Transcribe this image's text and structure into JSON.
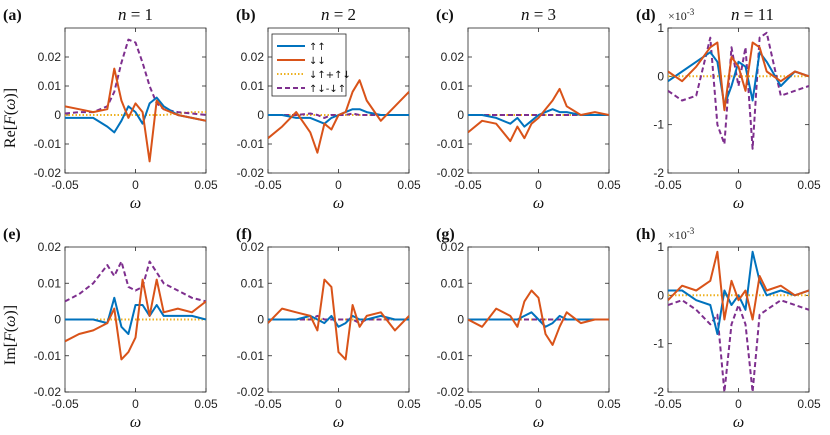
{
  "colors": {
    "up_up": "#0072BD",
    "down_down": "#D95319",
    "sym": "#EDB120",
    "antisym": "#7E2F8E",
    "axis": "#262626"
  },
  "row_labels": {
    "re_prefix": "Re[",
    "im_prefix": "Im[",
    "f_symbol": "F",
    "omega_symbol": "ω",
    "suffix": ")]",
    "open_paren": "("
  },
  "legend": {
    "entries": [
      {
        "key": "up_up",
        "label": "↑↑"
      },
      {
        "key": "down_down",
        "label": "↓↓"
      },
      {
        "key": "sym",
        "label": "↓↑+↑↓"
      },
      {
        "key": "antisym",
        "label": "↑↓-↓↑"
      }
    ]
  },
  "chart_data": [
    {
      "panel": "(a)",
      "title_var": "n",
      "title_eq": " = 1",
      "row": "Re",
      "type": "line",
      "xlabel": "ω",
      "xlim": [
        -0.05,
        0.05
      ],
      "ylim": [
        -0.02,
        0.03
      ],
      "xticks": [
        "-0.05",
        "0",
        "0.05"
      ],
      "yticks": [
        "-0.02",
        "-0.01",
        "0",
        "0.01",
        "0.02"
      ],
      "ytick_values": [
        -0.02,
        -0.01,
        0,
        0.01,
        0.02
      ],
      "exponent": "",
      "x": [
        -0.05,
        -0.04,
        -0.03,
        -0.02,
        -0.015,
        -0.01,
        -0.005,
        0,
        0.005,
        0.01,
        0.015,
        0.02,
        0.03,
        0.04,
        0.05
      ],
      "series": [
        {
          "name": "↑↑",
          "key": "up_up",
          "values": [
            -0.001,
            -0.001,
            -0.001,
            -0.004,
            -0.006,
            -0.002,
            0.003,
            0.001,
            -0.003,
            0.004,
            0.006,
            0.003,
            0,
            -0.001,
            -0.002
          ]
        },
        {
          "name": "↓↓",
          "key": "down_down",
          "values": [
            0.003,
            0.002,
            0.001,
            0.002,
            0.016,
            0.005,
            -0.001,
            0.004,
            0.001,
            -0.016,
            0.005,
            0.002,
            0,
            -0.001,
            -0.002
          ]
        },
        {
          "name": "↓↑+↑↓",
          "key": "sym",
          "values": [
            0,
            0,
            0,
            0,
            0,
            0,
            0,
            0,
            0,
            0,
            0,
            0,
            0.0005,
            0.001,
            0.001
          ]
        },
        {
          "name": "↑↓-↓↑",
          "key": "antisym",
          "values": [
            0.0005,
            0.001,
            0.001,
            0.003,
            0.008,
            0.018,
            0.026,
            0.025,
            0.018,
            0.01,
            0.004,
            0.002,
            0.001,
            0.0005,
            0
          ]
        }
      ]
    },
    {
      "panel": "(b)",
      "title_var": "n",
      "title_eq": " = 2",
      "row": "Re",
      "type": "line",
      "xlabel": "ω",
      "xlim": [
        -0.05,
        0.05
      ],
      "ylim": [
        -0.02,
        0.03
      ],
      "xticks": [
        "-0.05",
        "0",
        "0.05"
      ],
      "yticks": [
        "-0.02",
        "-0.01",
        "0",
        "0.01",
        "0.02"
      ],
      "ytick_values": [
        -0.02,
        -0.01,
        0,
        0.01,
        0.02
      ],
      "exponent": "",
      "x": [
        -0.05,
        -0.04,
        -0.03,
        -0.02,
        -0.015,
        -0.01,
        -0.005,
        0,
        0.005,
        0.01,
        0.015,
        0.02,
        0.03,
        0.04,
        0.05
      ],
      "series": [
        {
          "name": "↑↑",
          "key": "up_up",
          "values": [
            0,
            0,
            -0.001,
            -0.001,
            -0.002,
            -0.003,
            -0.001,
            0,
            0.001,
            0.002,
            0.002,
            0.001,
            0,
            0,
            0
          ]
        },
        {
          "name": "↓↓",
          "key": "down_down",
          "values": [
            -0.008,
            -0.004,
            0.001,
            -0.006,
            -0.013,
            -0.003,
            -0.005,
            0,
            0.001,
            0.008,
            0.012,
            0.005,
            -0.002,
            0.003,
            0.008
          ]
        },
        {
          "name": "↓↑+↑↓",
          "key": "sym",
          "values": [
            0,
            0,
            0,
            0,
            0,
            0,
            0,
            0,
            0,
            0,
            0,
            0,
            0,
            0,
            0
          ]
        },
        {
          "name": "↑↓-↓↑",
          "key": "antisym",
          "values": [
            0,
            0,
            0,
            0.0005,
            0,
            -0.001,
            0,
            0,
            0,
            0.0005,
            0,
            0,
            0,
            0,
            0
          ]
        }
      ]
    },
    {
      "panel": "(c)",
      "title_var": "n",
      "title_eq": " = 3",
      "row": "Re",
      "type": "line",
      "xlabel": "ω",
      "xlim": [
        -0.05,
        0.05
      ],
      "ylim": [
        -0.02,
        0.03
      ],
      "xticks": [
        "-0.05",
        "0",
        "0.05"
      ],
      "yticks": [
        "-0.02",
        "-0.01",
        "0",
        "0.01",
        "0.02"
      ],
      "ytick_values": [
        -0.02,
        -0.01,
        0,
        0.01,
        0.02
      ],
      "exponent": "",
      "x": [
        -0.05,
        -0.04,
        -0.03,
        -0.02,
        -0.015,
        -0.01,
        -0.005,
        0,
        0.005,
        0.01,
        0.015,
        0.02,
        0.03,
        0.04,
        0.05
      ],
      "series": [
        {
          "name": "↑↑",
          "key": "up_up",
          "values": [
            0,
            0,
            -0.001,
            -0.003,
            -0.001,
            -0.004,
            -0.002,
            0,
            0.001,
            0.002,
            0.001,
            0.001,
            0,
            0,
            0
          ]
        },
        {
          "name": "↓↓",
          "key": "down_down",
          "values": [
            -0.006,
            -0.002,
            -0.003,
            -0.009,
            -0.004,
            -0.008,
            -0.003,
            -0.001,
            0.002,
            0.005,
            0.009,
            0.003,
            0,
            0.001,
            0
          ]
        },
        {
          "name": "↓↑+↑↓",
          "key": "sym",
          "values": [
            0,
            0,
            0,
            0,
            0,
            0,
            0,
            0,
            0,
            0,
            0,
            0,
            0,
            0,
            0
          ]
        },
        {
          "name": "↑↓-↓↑",
          "key": "antisym",
          "values": [
            0,
            0,
            0,
            0,
            0,
            0,
            0,
            0,
            0,
            0,
            0,
            0,
            0,
            0,
            0
          ]
        }
      ]
    },
    {
      "panel": "(d)",
      "title_var": "n",
      "title_eq": " = 11",
      "row": "Re",
      "type": "line",
      "xlabel": "ω",
      "xlim": [
        -0.05,
        0.05
      ],
      "ylim": [
        -2,
        1
      ],
      "xticks": [
        "-0.05",
        "0",
        "0.05"
      ],
      "yticks": [
        "-2",
        "-1",
        "0",
        "1"
      ],
      "ytick_values": [
        -2,
        -1,
        0,
        1
      ],
      "exponent": "×10-3",
      "x": [
        -0.05,
        -0.04,
        -0.03,
        -0.02,
        -0.015,
        -0.01,
        -0.005,
        0,
        0.005,
        0.01,
        0.015,
        0.02,
        0.03,
        0.04,
        0.05
      ],
      "series": [
        {
          "name": "↑↑",
          "key": "up_up",
          "values": [
            -0.1,
            0.1,
            0.3,
            0.5,
            0.3,
            -0.6,
            -0.2,
            0.3,
            0.2,
            -0.5,
            0.5,
            0.3,
            -0.2,
            0.1,
            0
          ]
        },
        {
          "name": "↓↓",
          "key": "down_down",
          "values": [
            0.1,
            -0.1,
            0.2,
            0.6,
            0.7,
            -0.7,
            0.4,
            0.2,
            -0.3,
            0.7,
            0.6,
            0.1,
            -0.1,
            0.1,
            0
          ]
        },
        {
          "name": "↓↑+↑↓",
          "key": "sym",
          "values": [
            0,
            0,
            0,
            0,
            0,
            0,
            0,
            0,
            0,
            0,
            0,
            0,
            0,
            0,
            0
          ]
        },
        {
          "name": "↑↓-↓↑",
          "key": "antisym",
          "values": [
            -0.3,
            -0.5,
            -0.4,
            0.8,
            -1.0,
            -1.4,
            0.6,
            -0.2,
            0.6,
            -1.5,
            0.8,
            0.9,
            -0.4,
            -0.3,
            -0.2
          ]
        }
      ]
    },
    {
      "panel": "(e)",
      "title_var": "",
      "title_eq": "",
      "row": "Im",
      "type": "line",
      "xlabel": "ω",
      "xlim": [
        -0.05,
        0.05
      ],
      "ylim": [
        -0.02,
        0.02
      ],
      "xticks": [
        "-0.05",
        "0",
        "0.05"
      ],
      "yticks": [
        "-0.02",
        "-0.01",
        "0",
        "0.01",
        "0.02"
      ],
      "ytick_values": [
        -0.02,
        -0.01,
        0,
        0.01,
        0.02
      ],
      "exponent": "",
      "x": [
        -0.05,
        -0.04,
        -0.03,
        -0.02,
        -0.015,
        -0.01,
        -0.005,
        0,
        0.005,
        0.01,
        0.015,
        0.02,
        0.03,
        0.04,
        0.05
      ],
      "series": [
        {
          "name": "↑↑",
          "key": "up_up",
          "values": [
            0,
            0,
            0,
            -0.001,
            0.006,
            -0.002,
            -0.004,
            0.004,
            0.004,
            0.001,
            0.004,
            0.001,
            0.001,
            0.001,
            0
          ]
        },
        {
          "name": "↓↓",
          "key": "down_down",
          "values": [
            -0.006,
            -0.004,
            -0.003,
            -0.001,
            0.003,
            -0.011,
            -0.009,
            -0.005,
            0.011,
            0.001,
            0.011,
            0.002,
            0.003,
            0.002,
            0.005
          ]
        },
        {
          "name": "↓↑+↑↓",
          "key": "sym",
          "values": [
            0,
            0,
            0,
            0,
            0,
            0,
            0,
            0,
            0,
            0,
            0,
            0,
            0,
            0,
            0
          ]
        },
        {
          "name": "↑↓-↓↑",
          "key": "antisym",
          "values": [
            0.005,
            0.007,
            0.01,
            0.015,
            0.012,
            0.016,
            0.009,
            0.008,
            0.009,
            0.016,
            0.013,
            0.01,
            0.008,
            0.006,
            0.005
          ]
        }
      ]
    },
    {
      "panel": "(f)",
      "title_var": "",
      "title_eq": "",
      "row": "Im",
      "type": "line",
      "xlabel": "ω",
      "xlim": [
        -0.05,
        0.05
      ],
      "ylim": [
        -0.02,
        0.02
      ],
      "xticks": [
        "-0.05",
        "0",
        "0.05"
      ],
      "yticks": [
        "-0.02",
        "-0.01",
        "0",
        "0.01",
        "0.02"
      ],
      "ytick_values": [
        -0.02,
        -0.01,
        0,
        0.01,
        0.02
      ],
      "exponent": "",
      "x": [
        -0.05,
        -0.04,
        -0.03,
        -0.02,
        -0.015,
        -0.01,
        -0.005,
        0,
        0.005,
        0.01,
        0.015,
        0.02,
        0.03,
        0.04,
        0.05
      ],
      "series": [
        {
          "name": "↑↑",
          "key": "up_up",
          "values": [
            0,
            0,
            0,
            0.001,
            0,
            -0.001,
            0.001,
            -0.002,
            -0.001,
            0.001,
            0,
            0,
            0.001,
            0,
            0
          ]
        },
        {
          "name": "↓↓",
          "key": "down_down",
          "values": [
            -0.001,
            0.003,
            0.002,
            0.001,
            -0.003,
            0.011,
            0.009,
            -0.009,
            -0.011,
            0.004,
            -0.002,
            0.001,
            0.002,
            -0.003,
            0.001
          ]
        },
        {
          "name": "↓↑+↑↓",
          "key": "sym",
          "values": [
            0,
            0,
            0,
            0,
            0,
            0,
            0,
            0,
            0,
            0,
            0,
            0,
            0,
            0,
            0
          ]
        },
        {
          "name": "↑↓-↓↑",
          "key": "antisym",
          "values": [
            0,
            0,
            0,
            0,
            0.001,
            0,
            0,
            0,
            0,
            0,
            -0.001,
            0,
            0,
            0,
            0
          ]
        }
      ]
    },
    {
      "panel": "(g)",
      "title_var": "",
      "title_eq": "",
      "row": "Im",
      "type": "line",
      "xlabel": "ω",
      "xlim": [
        -0.05,
        0.05
      ],
      "ylim": [
        -0.02,
        0.02
      ],
      "xticks": [
        "-0.05",
        "0",
        "0.05"
      ],
      "yticks": [
        "-0.02",
        "-0.01",
        "0",
        "0.01",
        "0.02"
      ],
      "ytick_values": [
        -0.02,
        -0.01,
        0,
        0.01,
        0.02
      ],
      "exponent": "",
      "x": [
        -0.05,
        -0.04,
        -0.03,
        -0.02,
        -0.015,
        -0.01,
        -0.005,
        0,
        0.005,
        0.01,
        0.015,
        0.02,
        0.03,
        0.04,
        0.05
      ],
      "series": [
        {
          "name": "↑↑",
          "key": "up_up",
          "values": [
            0,
            0,
            0,
            0,
            0,
            0.001,
            0.002,
            0,
            -0.002,
            -0.001,
            0.001,
            0,
            0,
            0,
            0
          ]
        },
        {
          "name": "↓↓",
          "key": "down_down",
          "values": [
            0,
            -0.002,
            0.003,
            0.001,
            -0.002,
            0.005,
            0.008,
            0.006,
            -0.004,
            -0.007,
            -0.002,
            0.002,
            -0.001,
            0,
            0
          ]
        },
        {
          "name": "↓↑+↑↓",
          "key": "sym",
          "values": [
            0,
            0,
            0,
            0,
            0,
            0,
            0,
            0,
            0,
            0,
            0,
            0,
            0,
            0,
            0
          ]
        },
        {
          "name": "↑↓-↓↑",
          "key": "antisym",
          "values": [
            0,
            0,
            0,
            0,
            0,
            0,
            0,
            0,
            0,
            0,
            0,
            0,
            0,
            0,
            0
          ]
        }
      ]
    },
    {
      "panel": "(h)",
      "title_var": "",
      "title_eq": "",
      "row": "Im",
      "type": "line",
      "xlabel": "ω",
      "xlim": [
        -0.05,
        0.05
      ],
      "ylim": [
        -2,
        1
      ],
      "xticks": [
        "-0.05",
        "0",
        "0.05"
      ],
      "yticks": [
        "-2",
        "-1",
        "0",
        "1"
      ],
      "ytick_values": [
        -2,
        -1,
        0,
        1
      ],
      "exponent": "×10-3",
      "x": [
        -0.05,
        -0.04,
        -0.03,
        -0.02,
        -0.015,
        -0.01,
        -0.005,
        0,
        0.005,
        0.01,
        0.015,
        0.02,
        0.03,
        0.04,
        0.05
      ],
      "series": [
        {
          "name": "↑↑",
          "key": "up_up",
          "values": [
            0.1,
            0.1,
            -0.1,
            -0.2,
            -0.8,
            0.1,
            -0.2,
            0,
            -0.3,
            0.9,
            0.3,
            0,
            0.1,
            0,
            0.1
          ]
        },
        {
          "name": "↓↓",
          "key": "down_down",
          "values": [
            -0.1,
            0.2,
            0.1,
            0.3,
            0.9,
            -0.5,
            0.3,
            -0.1,
            0.1,
            -0.5,
            0.4,
            0.1,
            0.2,
            0,
            0.1
          ]
        },
        {
          "name": "↓↑+↑↓",
          "key": "sym",
          "values": [
            0,
            0,
            0,
            0,
            0,
            0,
            0,
            0,
            0,
            0,
            0,
            0,
            0,
            0,
            0
          ]
        },
        {
          "name": "↑↓-↓↑",
          "key": "antisym",
          "values": [
            -0.2,
            -0.1,
            -0.3,
            -0.6,
            -0.4,
            -2.0,
            -0.6,
            -0.2,
            -0.6,
            -2.0,
            -0.4,
            -0.3,
            -0.1,
            -0.2,
            -0.3
          ]
        }
      ]
    }
  ]
}
